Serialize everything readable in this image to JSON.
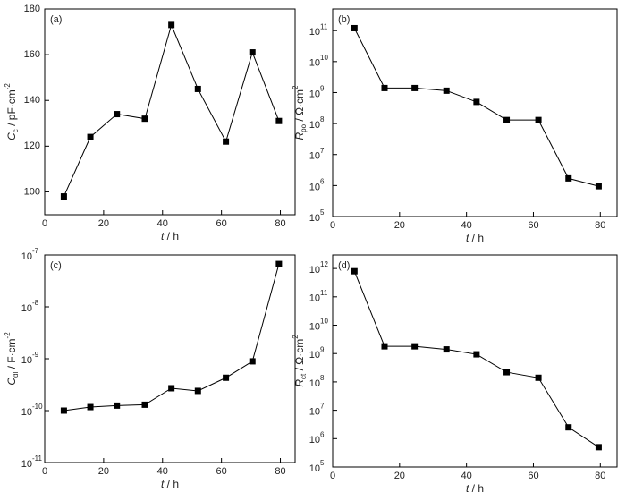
{
  "chart_data": [
    {
      "type": "line",
      "label": "(a)",
      "xlabel": {
        "symbol": "t",
        "unit": " / h"
      },
      "ylabel": {
        "symbol": "C",
        "subscript": "c",
        "unit": " / pF·cm",
        "superscript": "-2"
      },
      "x": [
        6.5,
        15.5,
        24.5,
        34,
        43,
        52,
        61.5,
        70.5,
        79.5
      ],
      "values": [
        98,
        124,
        134,
        132,
        173,
        145,
        122,
        161,
        131
      ],
      "color": "#000000",
      "log_y": false,
      "xlim": [
        0,
        85
      ],
      "xticks": [
        0,
        20,
        40,
        60,
        80
      ],
      "ylim": [
        90,
        180
      ],
      "yticks": [
        100,
        120,
        140,
        160,
        180
      ]
    },
    {
      "type": "line",
      "label": "(b)",
      "xlabel": {
        "symbol": "t",
        "unit": " / h"
      },
      "ylabel": {
        "symbol": "R",
        "subscript": "po",
        "unit": " / Ω·cm",
        "superscript": "2"
      },
      "x": [
        6.5,
        15.5,
        24.5,
        34,
        43,
        52,
        61.5,
        70.5,
        79.5
      ],
      "values": [
        120000000000,
        1400000000,
        1400000000,
        1150000000,
        500000000,
        130000000,
        130000000,
        1700000,
        950000
      ],
      "color": "#000000",
      "log_y": true,
      "xlim": [
        0,
        85
      ],
      "xticks": [
        0,
        20,
        40,
        60,
        80
      ],
      "ylim": [
        100000,
        500000000000
      ],
      "yticks": [
        {
          "value": 100000,
          "label": "10",
          "exponent": "5"
        },
        {
          "value": 1000000,
          "label": "10",
          "exponent": "6"
        },
        {
          "value": 10000000,
          "label": "10",
          "exponent": "7"
        },
        {
          "value": 100000000,
          "label": "10",
          "exponent": "8"
        },
        {
          "value": 1000000000,
          "label": "10",
          "exponent": "9"
        },
        {
          "value": 10000000000,
          "label": "10",
          "exponent": "10"
        },
        {
          "value": 100000000000,
          "label": "10",
          "exponent": "11"
        }
      ]
    },
    {
      "type": "line",
      "label": "(c)",
      "xlabel": {
        "symbol": "t",
        "unit": " / h"
      },
      "ylabel": {
        "symbol": "C",
        "subscript": "dl",
        "unit": " / F·cm",
        "superscript": "-2"
      },
      "x": [
        6.5,
        15.5,
        24.5,
        34,
        43,
        52,
        61.5,
        70.5,
        79.5
      ],
      "values": [
        1e-10,
        1.17e-10,
        1.25e-10,
        1.3e-10,
        2.7e-10,
        2.4e-10,
        4.3e-10,
        8.9e-10,
        6.7e-08
      ],
      "color": "#000000",
      "log_y": true,
      "xlim": [
        0,
        85
      ],
      "xticks": [
        0,
        20,
        40,
        60,
        80
      ],
      "ylim": [
        1e-11,
        1e-07
      ],
      "yticks": [
        {
          "value": 1e-11,
          "label": "10",
          "exponent": "-11"
        },
        {
          "value": 1e-10,
          "label": "10",
          "exponent": "-10"
        },
        {
          "value": 1e-09,
          "label": "10",
          "exponent": "-9"
        },
        {
          "value": 1e-08,
          "label": "10",
          "exponent": "-8"
        },
        {
          "value": 1e-07,
          "label": "10",
          "exponent": "-7"
        }
      ]
    },
    {
      "type": "line",
      "label": "(d)",
      "xlabel": {
        "symbol": "t",
        "unit": " / h"
      },
      "ylabel": {
        "symbol": "R",
        "subscript": "ct",
        "unit": " / Ω·cm",
        "superscript": "2"
      },
      "x": [
        6.5,
        15.5,
        24.5,
        34,
        43,
        52,
        61.5,
        70.5,
        79.5
      ],
      "values": [
        800000000000,
        1800000000,
        1800000000,
        1400000000,
        940000000,
        220000000,
        140000000,
        2500000,
        500000
      ],
      "color": "#000000",
      "log_y": true,
      "xlim": [
        0,
        85
      ],
      "xticks": [
        0,
        20,
        40,
        60,
        80
      ],
      "ylim": [
        100000,
        3000000000000
      ],
      "yticks": [
        {
          "value": 100000,
          "label": "10",
          "exponent": "5"
        },
        {
          "value": 1000000,
          "label": "10",
          "exponent": "6"
        },
        {
          "value": 10000000,
          "label": "10",
          "exponent": "7"
        },
        {
          "value": 100000000,
          "label": "10",
          "exponent": "8"
        },
        {
          "value": 1000000000,
          "label": "10",
          "exponent": "9"
        },
        {
          "value": 10000000000,
          "label": "10",
          "exponent": "10"
        },
        {
          "value": 100000000000,
          "label": "10",
          "exponent": "11"
        },
        {
          "value": 1000000000000,
          "label": "10",
          "exponent": "12"
        }
      ]
    }
  ]
}
